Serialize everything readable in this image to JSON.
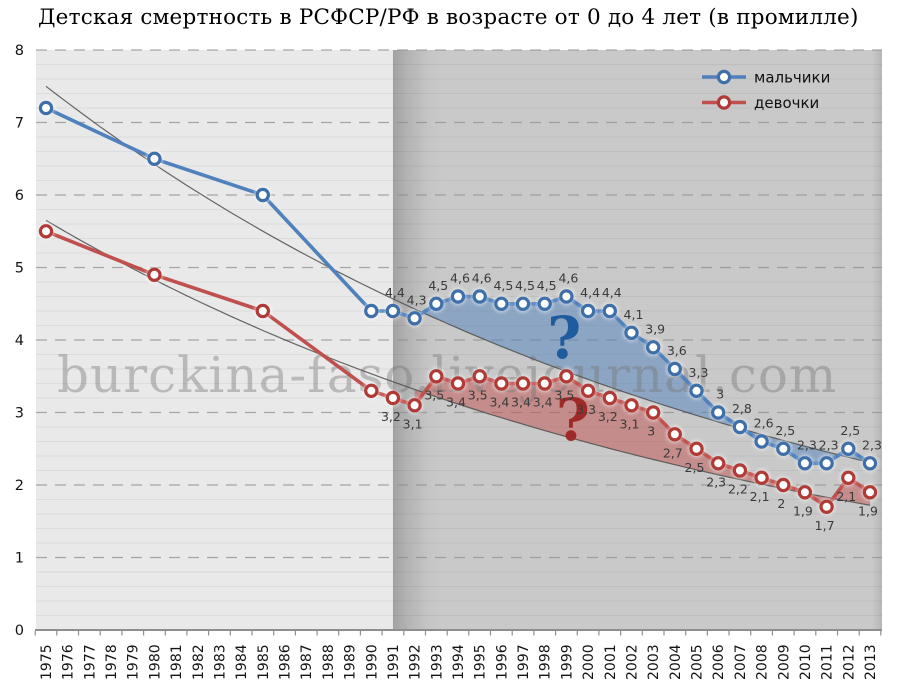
{
  "title": "Детская смертность в РСФСР/РФ в возрасте от 0 до 4 лет (в промилле)",
  "watermark": "burckina-faso.livejournal.com",
  "legend": {
    "position": "top-right-inside",
    "items": [
      {
        "label": "мальчики",
        "color": "#4f81bd",
        "ring": "#3e6fa9"
      },
      {
        "label": "девочки",
        "color": "#c0504d",
        "ring": "#b03a36"
      }
    ]
  },
  "chart_data": {
    "type": "line",
    "title": "Детская смертность в РСФСР/РФ в возрасте от 0 до 4 лет (в промилле)",
    "xlabel": "",
    "ylabel": "",
    "ylim": [
      0,
      8
    ],
    "yticks": [
      "8",
      "7",
      "6",
      "5",
      "4",
      "3",
      "2",
      "1",
      "0"
    ],
    "y_minor_step": 0.2,
    "grid": {
      "major": "dashed horizontal line at each integer",
      "minor": "thin solid line every 0.2"
    },
    "legend_position": "top-right inside plot",
    "era_split": {
      "year": 1991,
      "left_bg": "#e9e9e9",
      "right_bg": "#c9c9c9",
      "note": "darker background band from 1991 to right edge"
    },
    "x_categories": [
      "1975",
      "1976",
      "1977",
      "1978",
      "1979",
      "1980",
      "1981",
      "1982",
      "1983",
      "1984",
      "1985",
      "1986",
      "1987",
      "1988",
      "1989",
      "1990",
      "1991",
      "1992",
      "1993",
      "1994",
      "1995",
      "1996",
      "1997",
      "1998",
      "1999",
      "2000",
      "2001",
      "2002",
      "2003",
      "2004",
      "2005",
      "2006",
      "2007",
      "2008",
      "2009",
      "2010",
      "2011",
      "2012",
      "2013"
    ],
    "series": [
      {
        "name": "мальчики",
        "color": "#4f81bd",
        "ring": "#3e6fa9",
        "marker": "circle, white fill, blue ring, white glow",
        "points": [
          {
            "year": 1975,
            "value": 7.2,
            "label": ""
          },
          {
            "year": 1980,
            "value": 6.5,
            "label": ""
          },
          {
            "year": 1985,
            "value": 6.0,
            "label": ""
          },
          {
            "year": 1990,
            "value": 4.4,
            "label": ""
          },
          {
            "year": 1991,
            "value": 4.4,
            "label": "4,4"
          },
          {
            "year": 1992,
            "value": 4.3,
            "label": "4,3"
          },
          {
            "year": 1993,
            "value": 4.5,
            "label": "4,5"
          },
          {
            "year": 1994,
            "value": 4.6,
            "label": "4,6"
          },
          {
            "year": 1995,
            "value": 4.6,
            "label": "4,6"
          },
          {
            "year": 1996,
            "value": 4.5,
            "label": "4,5"
          },
          {
            "year": 1997,
            "value": 4.5,
            "label": "4,5"
          },
          {
            "year": 1998,
            "value": 4.5,
            "label": "4,5"
          },
          {
            "year": 1999,
            "value": 4.6,
            "label": "4,6"
          },
          {
            "year": 2000,
            "value": 4.4,
            "label": "4,4"
          },
          {
            "year": 2001,
            "value": 4.4,
            "label": "4,4"
          },
          {
            "year": 2002,
            "value": 4.1,
            "label": "4,1"
          },
          {
            "year": 2003,
            "value": 3.9,
            "label": "3,9"
          },
          {
            "year": 2004,
            "value": 3.6,
            "label": "3,6"
          },
          {
            "year": 2005,
            "value": 3.3,
            "label": "3,3"
          },
          {
            "year": 2006,
            "value": 3.0,
            "label": "3"
          },
          {
            "year": 2007,
            "value": 2.8,
            "label": "2,8"
          },
          {
            "year": 2008,
            "value": 2.6,
            "label": "2,6"
          },
          {
            "year": 2009,
            "value": 2.5,
            "label": "2,5"
          },
          {
            "year": 2010,
            "value": 2.3,
            "label": "2,3"
          },
          {
            "year": 2011,
            "value": 2.3,
            "label": "2,3"
          },
          {
            "year": 2012,
            "value": 2.5,
            "label": "2,5"
          },
          {
            "year": 2013,
            "value": 2.3,
            "label": "2,3"
          }
        ]
      },
      {
        "name": "девочки",
        "color": "#c0504d",
        "ring": "#b03a36",
        "marker": "circle, white fill, red ring, white glow",
        "points": [
          {
            "year": 1975,
            "value": 5.5,
            "label": ""
          },
          {
            "year": 1980,
            "value": 4.9,
            "label": ""
          },
          {
            "year": 1985,
            "value": 4.4,
            "label": ""
          },
          {
            "year": 1990,
            "value": 3.3,
            "label": ""
          },
          {
            "year": 1991,
            "value": 3.2,
            "label": "3,2"
          },
          {
            "year": 1992,
            "value": 3.1,
            "label": "3,1"
          },
          {
            "year": 1993,
            "value": 3.5,
            "label": "3,5"
          },
          {
            "year": 1994,
            "value": 3.4,
            "label": "3,4"
          },
          {
            "year": 1995,
            "value": 3.5,
            "label": "3,5"
          },
          {
            "year": 1996,
            "value": 3.4,
            "label": "3,4"
          },
          {
            "year": 1997,
            "value": 3.4,
            "label": "3,4"
          },
          {
            "year": 1998,
            "value": 3.4,
            "label": "3,4"
          },
          {
            "year": 1999,
            "value": 3.5,
            "label": "3,5"
          },
          {
            "year": 2000,
            "value": 3.3,
            "label": "3,3"
          },
          {
            "year": 2001,
            "value": 3.2,
            "label": "3,2"
          },
          {
            "year": 2002,
            "value": 3.1,
            "label": "3,1"
          },
          {
            "year": 2003,
            "value": 3.0,
            "label": "3"
          },
          {
            "year": 2004,
            "value": 2.7,
            "label": "2,7"
          },
          {
            "year": 2005,
            "value": 2.5,
            "label": "2,5"
          },
          {
            "year": 2006,
            "value": 2.3,
            "label": "2,3"
          },
          {
            "year": 2007,
            "value": 2.2,
            "label": "2,2"
          },
          {
            "year": 2008,
            "value": 2.1,
            "label": "2,1"
          },
          {
            "year": 2009,
            "value": 2.0,
            "label": "2"
          },
          {
            "year": 2010,
            "value": 1.9,
            "label": "1,9"
          },
          {
            "year": 2011,
            "value": 1.7,
            "label": "1,7"
          },
          {
            "year": 2012,
            "value": 2.1,
            "label": "2,1"
          },
          {
            "year": 2013,
            "value": 1.9,
            "label": "1,9"
          }
        ]
      }
    ],
    "trendlines": [
      {
        "series": "мальчики",
        "shape": "exponential",
        "value_1975": 7.5,
        "value_2013": 2.31,
        "color": "#4d4d4d"
      },
      {
        "series": "девочки",
        "shape": "exponential",
        "value_1975": 5.65,
        "value_2013": 1.72,
        "color": "#4d4d4d"
      }
    ],
    "area_fills": [
      {
        "series": "мальчики",
        "between": [
          "series",
          "trendline"
        ],
        "from_year": 1992,
        "to_year": 2013,
        "color": "rgba(79,129,189,0.5)",
        "question_mark": {
          "text": "?",
          "color": "#1e5c9e",
          "year": 1998.9,
          "value": 4.03
        }
      },
      {
        "series": "девочки",
        "between": [
          "series",
          "trendline"
        ],
        "from_year": 1992,
        "to_year": 2013,
        "color": "rgba(192,80,77,0.5)",
        "question_mark": {
          "text": "?",
          "color": "#9e2b28",
          "year": 1999.3,
          "value": 2.9
        }
      }
    ]
  }
}
